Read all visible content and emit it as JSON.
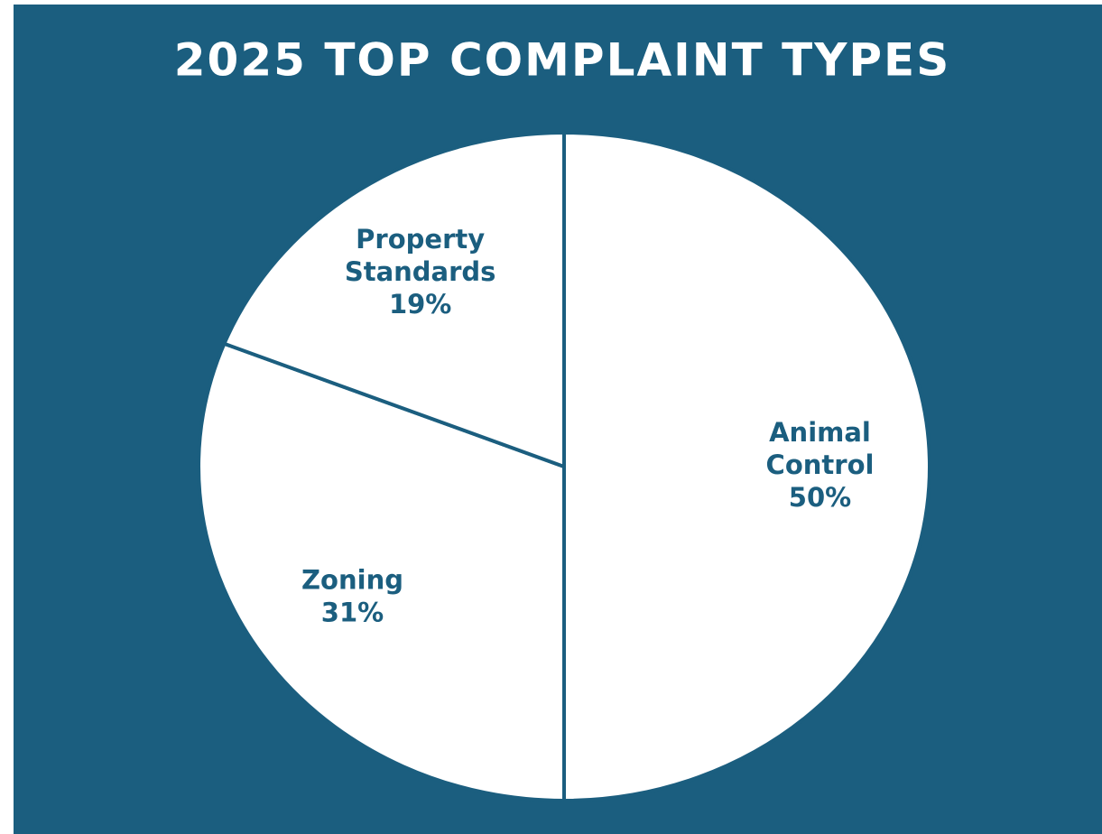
{
  "chart_data": {
    "type": "pie",
    "title": "2025 TOP COMPLAINT TYPES",
    "categories": [
      "Animal Control",
      "Zoning",
      "Property Standards"
    ],
    "values": [
      50,
      31,
      19
    ],
    "value_labels": [
      "50%",
      "31%",
      "19%"
    ],
    "colors": [
      "#ffffff",
      "#ffffff",
      "#ffffff"
    ],
    "background": "#1b5e7f"
  }
}
